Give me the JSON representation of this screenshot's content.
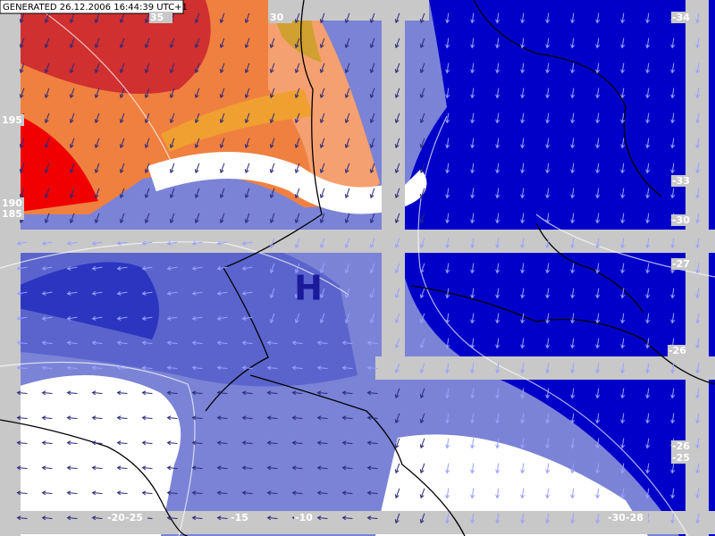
{
  "header": {
    "text": "GENERATED 26.12.2006 16:44:39 UTC+1"
  },
  "pressure_center": {
    "label": "H"
  },
  "contour_labels": [
    "35",
    "30",
    "195",
    "190",
    "185",
    "-34",
    "-33",
    "-30",
    "-27",
    "-26",
    "-26",
    "-25",
    "-20",
    "-25",
    "-15",
    "-10",
    "-30",
    "-28"
  ]
}
